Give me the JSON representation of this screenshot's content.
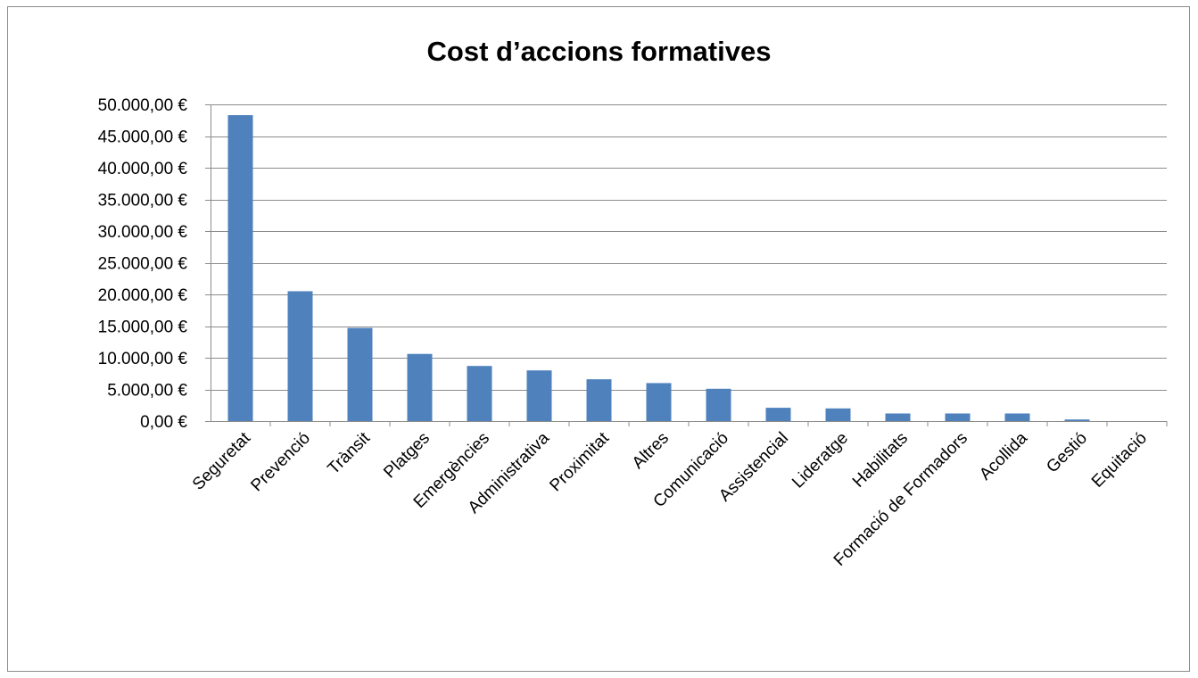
{
  "chart_data": {
    "type": "bar",
    "title": "Cost d’accions formatives",
    "xlabel": "",
    "ylabel": "",
    "categories": [
      "Seguretat",
      "Prevenció",
      "Trànsit",
      "Platges",
      "Emergències",
      "Administrativa",
      "Proximitat",
      "Altres",
      "Comunicació",
      "Assistencial",
      "Lideratge",
      "Habilitats",
      "Formació de Formadors",
      "Acollida",
      "Gestió",
      "Equitació"
    ],
    "values": [
      48300,
      20500,
      14700,
      10600,
      8700,
      8000,
      6600,
      6000,
      5100,
      2100,
      2000,
      1200,
      1200,
      1200,
      250,
      0
    ],
    "ylim": [
      0,
      50000
    ],
    "yticks": [
      0,
      5000,
      10000,
      15000,
      20000,
      25000,
      30000,
      35000,
      40000,
      45000,
      50000
    ],
    "ytick_labels": [
      "0,00 €",
      "5.000,00 €",
      "10.000,00 €",
      "15.000,00 €",
      "20.000,00 €",
      "25.000,00 €",
      "30.000,00 €",
      "35.000,00 €",
      "40.000,00 €",
      "45.000,00 €",
      "50.000,00 €"
    ],
    "grid": true,
    "legend": "none",
    "bar_color": "#4f81bd",
    "grid_color": "#8c8c8c"
  }
}
